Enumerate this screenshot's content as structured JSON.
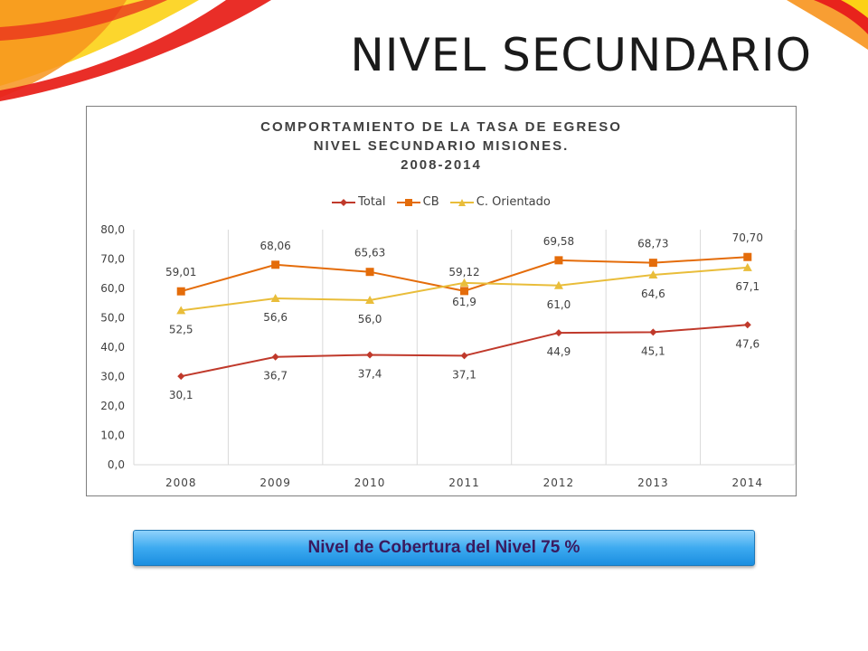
{
  "slide": {
    "title": "NIVEL SECUNDARIO",
    "banner_text": "Nivel de Cobertura del Nivel 75 %"
  },
  "colors": {
    "deco_red": "#e8231c",
    "deco_orange": "#f7941d",
    "deco_yellow": "#fcd116",
    "total": "#c0392b",
    "cb": "#e46c0a",
    "c_orientado": "#e9bd3a",
    "banner": "#3daaf0"
  },
  "chart_data": {
    "type": "line",
    "title_lines": [
      "COMPORTAMIENTO DE LA TASA DE EGRESO",
      "NIVEL SECUNDARIO MISIONES.",
      "2008-2014"
    ],
    "categories": [
      "2008",
      "2009",
      "2010",
      "2011",
      "2012",
      "2013",
      "2014"
    ],
    "ylim": [
      0,
      80
    ],
    "yticks": [
      "0,0",
      "10,0",
      "20,0",
      "30,0",
      "40,0",
      "50,0",
      "60,0",
      "70,0",
      "80,0"
    ],
    "grid": "vertical",
    "legend_position": "top",
    "series": [
      {
        "name": "Total",
        "marker": "diamond",
        "values": [
          30.1,
          36.7,
          37.4,
          37.1,
          44.9,
          45.1,
          47.6
        ],
        "labels": [
          "30,1",
          "36,7",
          "37,4",
          "37,1",
          "44,9",
          "45,1",
          "47,6"
        ]
      },
      {
        "name": "CB",
        "marker": "square",
        "values": [
          59.01,
          68.06,
          65.63,
          59.12,
          69.58,
          68.73,
          70.7
        ],
        "labels": [
          "59,01",
          "68,06",
          "65,63",
          "59,12",
          "69,58",
          "68,73",
          "70,70"
        ]
      },
      {
        "name": "C. Orientado",
        "marker": "triangle",
        "values": [
          52.5,
          56.6,
          56.0,
          61.9,
          61.0,
          64.6,
          67.1
        ],
        "labels": [
          "52,5",
          "56,6",
          "56,0",
          "61,9",
          "61,0",
          "64,6",
          "67,1"
        ]
      }
    ]
  }
}
